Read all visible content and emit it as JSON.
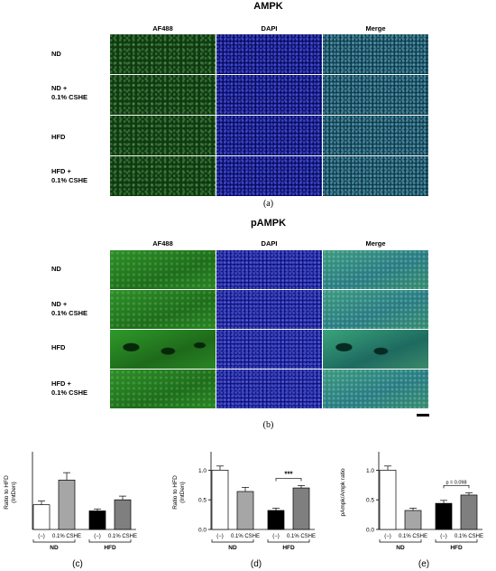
{
  "panel_a": {
    "title": "AMPK",
    "columns": [
      "AF488",
      "DAPI",
      "Merge"
    ],
    "rows": [
      {
        "line1": "ND",
        "line2": ""
      },
      {
        "line1": "ND +",
        "line2": "0.1% CSHE"
      },
      {
        "line1": "HFD",
        "line2": ""
      },
      {
        "line1": "HFD +",
        "line2": "0.1% CSHE"
      }
    ],
    "caption": "(a)"
  },
  "panel_b": {
    "title": "pAMPK",
    "columns": [
      "AF488",
      "DAPI",
      "Merge"
    ],
    "rows": [
      {
        "line1": "ND",
        "line2": ""
      },
      {
        "line1": "ND +",
        "line2": "0.1% CSHE"
      },
      {
        "line1": "HFD",
        "line2": ""
      },
      {
        "line1": "HFD +",
        "line2": "0.1% CSHE"
      }
    ],
    "caption": "(b)"
  },
  "chart_data": [
    {
      "type": "bar",
      "caption": "(c)",
      "ylabel_lines": [
        "Ratio to HFD",
        "(IntDen)"
      ],
      "categories": [
        "(−)",
        "0.1% CSHE",
        "(−)",
        "0.1% CSHE"
      ],
      "groups": [
        "ND",
        "HFD"
      ],
      "values": [
        1.0,
        2.0,
        0.75,
        1.2
      ],
      "errors": [
        0.15,
        0.3,
        0.08,
        0.15
      ],
      "bar_colors": [
        "#ffffff",
        "#a6a6a6",
        "#000000",
        "#7f7f7f"
      ],
      "ylim": [
        0,
        3
      ],
      "yticks": [],
      "annotation": ""
    },
    {
      "type": "bar",
      "caption": "(d)",
      "ylabel_lines": [
        "Ratio to HFD",
        "(IntDen)"
      ],
      "categories": [
        "(−)",
        "0.1% CSHE",
        "(−)",
        "0.1% CSHE"
      ],
      "groups": [
        "ND",
        "HFD"
      ],
      "values": [
        1.0,
        0.64,
        0.32,
        0.7
      ],
      "errors": [
        0.07,
        0.07,
        0.04,
        0.04
      ],
      "bar_colors": [
        "#ffffff",
        "#a6a6a6",
        "#000000",
        "#7f7f7f"
      ],
      "ylim": [
        0,
        1.25
      ],
      "yticks": [
        "0.0",
        "0.5",
        "1.0"
      ],
      "annotation": "***"
    },
    {
      "type": "bar",
      "caption": "(e)",
      "ylabel_lines": [
        "pAmpk/Ampk ratio"
      ],
      "categories": [
        "(−)",
        "0.1% CSHE",
        "(−)",
        "0.1% CSHE"
      ],
      "groups": [
        "ND",
        "HFD"
      ],
      "values": [
        1.0,
        0.32,
        0.44,
        0.58
      ],
      "errors": [
        0.07,
        0.04,
        0.05,
        0.04
      ],
      "bar_colors": [
        "#ffffff",
        "#a6a6a6",
        "#000000",
        "#7f7f7f"
      ],
      "ylim": [
        0,
        1.25
      ],
      "yticks": [
        "0.0",
        "0.5",
        "1.0"
      ],
      "annotation": "p = 0.098"
    }
  ]
}
